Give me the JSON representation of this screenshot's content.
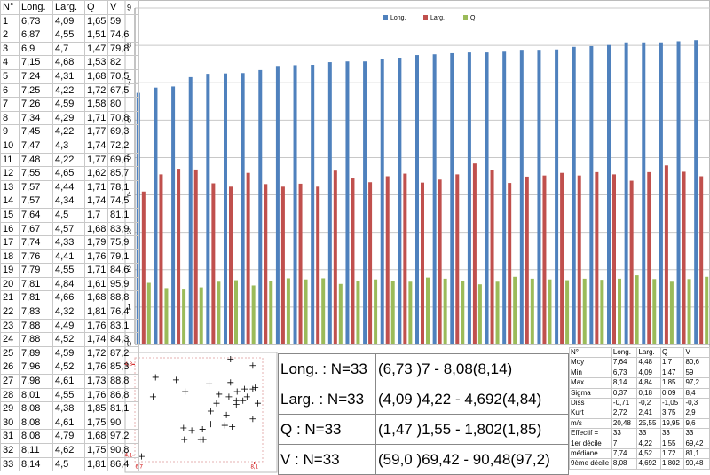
{
  "data_table": {
    "header": [
      "N°",
      "Long.",
      "Larg.",
      "Q",
      "V"
    ],
    "rows": [
      [
        "1",
        "6,73",
        "4,09",
        "1,65",
        "59"
      ],
      [
        "2",
        "6,87",
        "4,55",
        "1,51",
        "74,6"
      ],
      [
        "3",
        "6,9",
        "4,7",
        "1,47",
        "79,8"
      ],
      [
        "4",
        "7,15",
        "4,68",
        "1,53",
        "82"
      ],
      [
        "5",
        "7,24",
        "4,31",
        "1,68",
        "70,5"
      ],
      [
        "6",
        "7,25",
        "4,22",
        "1,72",
        "67,5"
      ],
      [
        "7",
        "7,26",
        "4,59",
        "1,58",
        "80"
      ],
      [
        "8",
        "7,34",
        "4,29",
        "1,71",
        "70,8"
      ],
      [
        "9",
        "7,45",
        "4,22",
        "1,77",
        "69,3"
      ],
      [
        "10",
        "7,47",
        "4,3",
        "1,74",
        "72,2"
      ],
      [
        "11",
        "7,48",
        "4,22",
        "1,77",
        "69,6"
      ],
      [
        "12",
        "7,55",
        "4,65",
        "1,62",
        "85,7"
      ],
      [
        "13",
        "7,57",
        "4,44",
        "1,71",
        "78,1"
      ],
      [
        "14",
        "7,57",
        "4,34",
        "1,74",
        "74,5"
      ],
      [
        "15",
        "7,64",
        "4,5",
        "1,7",
        "81,1"
      ],
      [
        "16",
        "7,67",
        "4,57",
        "1,68",
        "83,9"
      ],
      [
        "17",
        "7,74",
        "4,33",
        "1,79",
        "75,9"
      ],
      [
        "18",
        "7,76",
        "4,41",
        "1,76",
        "79,1"
      ],
      [
        "19",
        "7,79",
        "4,55",
        "1,71",
        "84,6"
      ],
      [
        "20",
        "7,81",
        "4,84",
        "1,61",
        "95,9"
      ],
      [
        "21",
        "7,81",
        "4,66",
        "1,68",
        "88,8"
      ],
      [
        "22",
        "7,83",
        "4,32",
        "1,81",
        "76,4"
      ],
      [
        "23",
        "7,88",
        "4,49",
        "1,76",
        "83,1"
      ],
      [
        "24",
        "7,88",
        "4,52",
        "1,74",
        "84,3"
      ],
      [
        "25",
        "7,89",
        "4,59",
        "1,72",
        "87,2"
      ],
      [
        "26",
        "7,96",
        "4,52",
        "1,76",
        "85,3"
      ],
      [
        "27",
        "7,98",
        "4,61",
        "1,73",
        "88,8"
      ],
      [
        "28",
        "8,01",
        "4,55",
        "1,76",
        "86,8"
      ],
      [
        "29",
        "8,08",
        "4,38",
        "1,85",
        "81,1"
      ],
      [
        "30",
        "8,08",
        "4,61",
        "1,75",
        "90"
      ],
      [
        "31",
        "8,08",
        "4,79",
        "1,68",
        "97,2"
      ],
      [
        "32",
        "8,11",
        "4,62",
        "1,75",
        "90,8"
      ],
      [
        "33",
        "8,14",
        "4,5",
        "1,81",
        "86,4"
      ]
    ]
  },
  "chart_data": [
    {
      "type": "bar",
      "ylim": [
        0,
        9
      ],
      "yticks": [
        0,
        1,
        2,
        3,
        4,
        5,
        6,
        7,
        8,
        9
      ],
      "grid": true,
      "legend": "top",
      "series": [
        {
          "name": "Long.",
          "color": "#4f81bd",
          "values": [
            6.73,
            6.87,
            6.9,
            7.15,
            7.24,
            7.25,
            7.26,
            7.34,
            7.45,
            7.47,
            7.48,
            7.55,
            7.57,
            7.57,
            7.64,
            7.67,
            7.74,
            7.76,
            7.79,
            7.81,
            7.81,
            7.83,
            7.88,
            7.88,
            7.89,
            7.96,
            7.98,
            8.01,
            8.08,
            8.08,
            8.08,
            8.11,
            8.14
          ]
        },
        {
          "name": "Larg.",
          "color": "#c0504d",
          "values": [
            4.09,
            4.55,
            4.7,
            4.68,
            4.31,
            4.22,
            4.59,
            4.29,
            4.22,
            4.3,
            4.22,
            4.65,
            4.44,
            4.34,
            4.5,
            4.57,
            4.33,
            4.41,
            4.55,
            4.84,
            4.66,
            4.32,
            4.49,
            4.52,
            4.59,
            4.52,
            4.61,
            4.55,
            4.38,
            4.61,
            4.79,
            4.62,
            4.5
          ]
        },
        {
          "name": "Q",
          "color": "#9bbb59",
          "values": [
            1.65,
            1.51,
            1.47,
            1.53,
            1.68,
            1.72,
            1.58,
            1.71,
            1.77,
            1.74,
            1.77,
            1.62,
            1.71,
            1.74,
            1.7,
            1.68,
            1.79,
            1.76,
            1.71,
            1.61,
            1.68,
            1.81,
            1.76,
            1.74,
            1.72,
            1.76,
            1.73,
            1.76,
            1.85,
            1.75,
            1.68,
            1.75,
            1.81
          ]
        }
      ]
    },
    {
      "type": "scatter",
      "color": "#000000",
      "x": [
        6.73,
        6.87,
        6.9,
        7.15,
        7.24,
        7.25,
        7.26,
        7.34,
        7.45,
        7.47,
        7.48,
        7.55,
        7.57,
        7.57,
        7.64,
        7.67,
        7.74,
        7.76,
        7.79,
        7.81,
        7.81,
        7.83,
        7.88,
        7.88,
        7.89,
        7.96,
        7.98,
        8.01,
        8.08,
        8.08,
        8.08,
        8.11,
        8.14
      ],
      "y": [
        4.09,
        4.55,
        4.7,
        4.68,
        4.31,
        4.22,
        4.59,
        4.29,
        4.22,
        4.3,
        4.22,
        4.65,
        4.44,
        4.34,
        4.5,
        4.57,
        4.33,
        4.41,
        4.55,
        4.84,
        4.66,
        4.32,
        4.49,
        4.52,
        4.59,
        4.52,
        4.61,
        4.55,
        4.38,
        4.61,
        4.79,
        4.62,
        4.5
      ],
      "xlim": [
        6.65,
        8.2
      ],
      "ylim": [
        4.05,
        4.85
      ],
      "xticks": [
        {
          "value": 6.7,
          "label": "6,7"
        },
        {
          "value": 8.1,
          "label": "8,1"
        }
      ],
      "yticks": [
        {
          "value": 4.1,
          "label": "4,1"
        },
        {
          "value": 4.8,
          "label": "4,8"
        }
      ]
    }
  ],
  "summary_table": {
    "rows": [
      [
        "Long. : N=33",
        "(6,73 )7 - 8,08(8,14)"
      ],
      [
        "Larg. : N=33",
        "(4,09 )4,22 - 4,692(4,84)"
      ],
      [
        "Q : N=33",
        "(1,47 )1,55 - 1,802(1,85)"
      ],
      [
        "V : N=33",
        "(59,0 )69,42 - 90,48(97,2)"
      ]
    ]
  },
  "stats_table": {
    "header": [
      "N°",
      "Long.",
      "Larg.",
      "Q",
      "V"
    ],
    "rows": [
      [
        "Moy",
        "7,64",
        "4,48",
        "1,7",
        "80,6"
      ],
      [
        "Min",
        "6,73",
        "4,09",
        "1,47",
        "59"
      ],
      [
        "Max",
        "8,14",
        "4,84",
        "1,85",
        "97,2"
      ],
      [
        "Sigma",
        "0,37",
        "0,18",
        "0,09",
        "8,4"
      ],
      [
        "Diss",
        "-0,71",
        "-0,2",
        "-1,05",
        "-0,3"
      ],
      [
        "Kurt",
        "2,72",
        "2,41",
        "3,75",
        "2,9"
      ],
      [
        "m/s",
        "20,48",
        "25,55",
        "19,95",
        "9,6"
      ],
      [
        "Effectif =",
        "33",
        "33",
        "33",
        "33"
      ],
      [
        "1er décile",
        "7",
        "4,22",
        "1,55",
        "69,42"
      ],
      [
        "médiane",
        "7,74",
        "4,52",
        "1,72",
        "81,1"
      ],
      [
        "9ème décile",
        "8,08",
        "4,692",
        "1,802",
        "90,48"
      ]
    ]
  }
}
